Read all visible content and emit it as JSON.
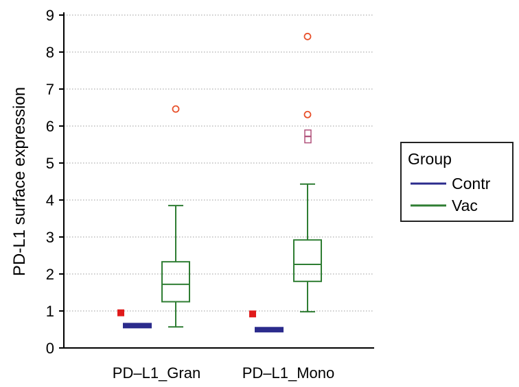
{
  "chart_data": {
    "type": "box",
    "title": "",
    "xlabel": "",
    "ylabel": "PD-L1 surface expression",
    "ylim": [
      0,
      9
    ],
    "yticks": [
      0,
      1,
      2,
      3,
      4,
      5,
      6,
      7,
      8,
      9
    ],
    "grid": "horizontal-dotted",
    "categories": [
      "PD–L1_Gran",
      "PD–L1_Mono"
    ],
    "legend": {
      "title": "Group",
      "position": "right",
      "entries": [
        {
          "name": "Contr",
          "color": "#2b2b8c"
        },
        {
          "name": "Vac",
          "color": "#2e7d32"
        }
      ]
    },
    "series": [
      {
        "name": "Contr",
        "color": "#2b2b8c",
        "boxes": [
          {
            "category": "PD–L1_Gran",
            "min": 0.57,
            "q1": 0.57,
            "median": 0.61,
            "q3": 0.66,
            "max": 0.66,
            "outliers": [
              {
                "value": 0.95,
                "marker": "filled-square",
                "color": "#e01a1a"
              }
            ]
          },
          {
            "category": "PD–L1_Mono",
            "min": 0.46,
            "q1": 0.46,
            "median": 0.51,
            "q3": 0.55,
            "max": 0.55,
            "outliers": [
              {
                "value": 0.92,
                "marker": "filled-square",
                "color": "#e01a1a"
              }
            ]
          }
        ]
      },
      {
        "name": "Vac",
        "color": "#2e7d32",
        "boxes": [
          {
            "category": "PD–L1_Gran",
            "min": 0.57,
            "q1": 1.25,
            "median": 1.72,
            "q3": 2.33,
            "max": 3.85,
            "outliers": [
              {
                "value": 6.46,
                "marker": "open-circle",
                "color": "#e8502a"
              }
            ]
          },
          {
            "category": "PD–L1_Mono",
            "min": 0.98,
            "q1": 1.8,
            "median": 2.26,
            "q3": 2.92,
            "max": 4.43,
            "outliers": [
              {
                "value": 5.8,
                "marker": "open-square",
                "color": "#b0507a"
              },
              {
                "value": 5.62,
                "marker": "open-square",
                "color": "#b0507a"
              },
              {
                "value": 6.31,
                "marker": "open-circle",
                "color": "#e8502a"
              },
              {
                "value": 8.42,
                "marker": "open-circle",
                "color": "#e8502a"
              }
            ]
          }
        ]
      }
    ]
  }
}
